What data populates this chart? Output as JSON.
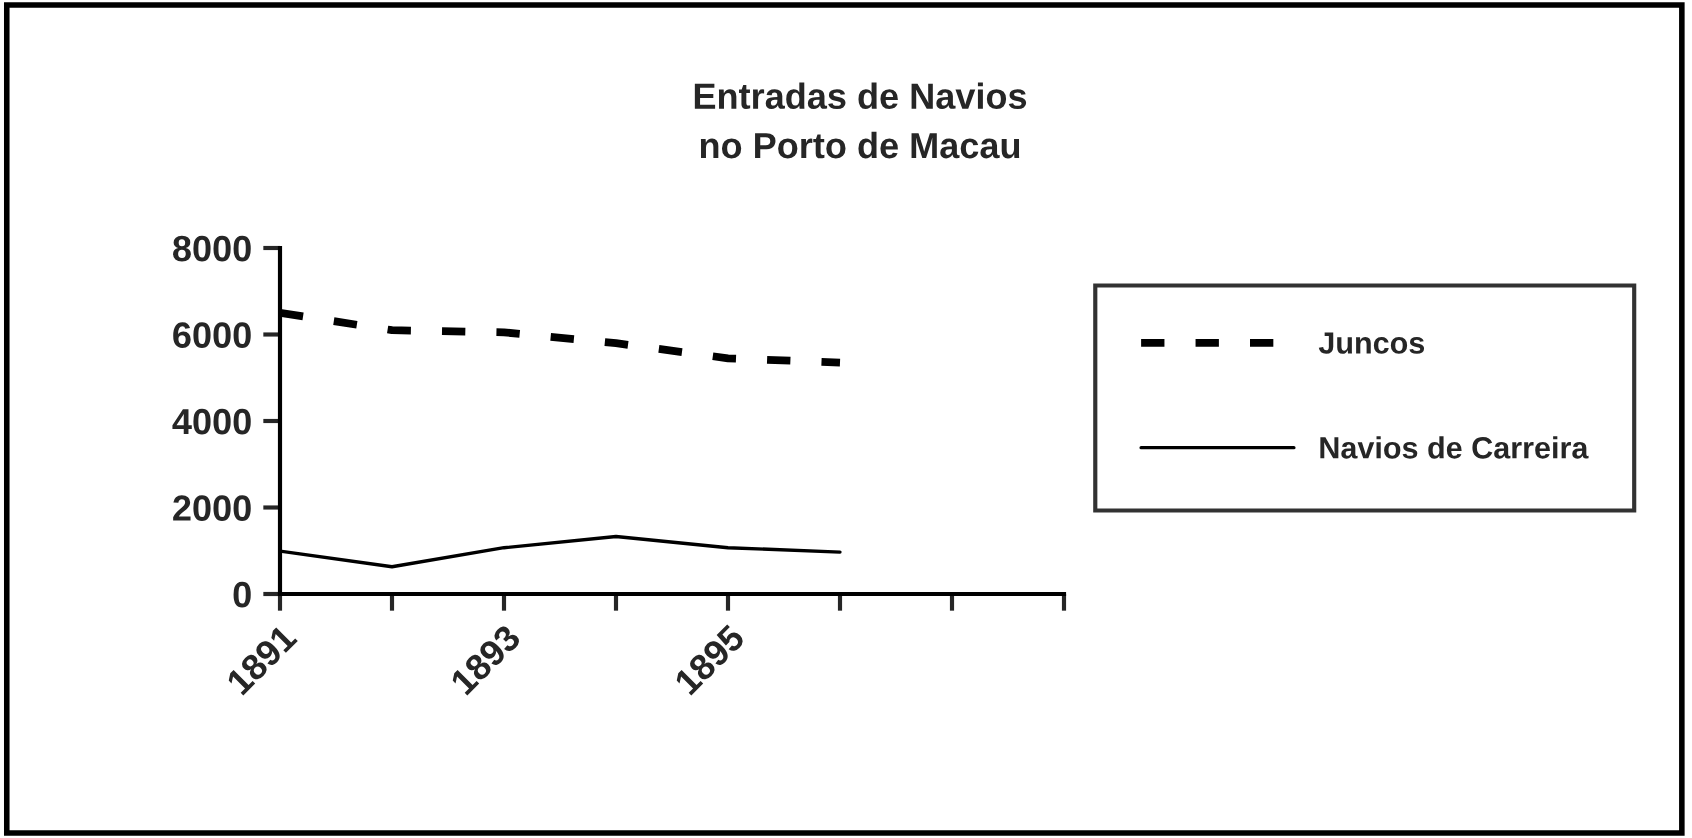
{
  "chart_data": {
    "type": "line",
    "title": "Entradas de Navios\nno Porto de Macau",
    "categories": [
      "1891",
      null,
      "1893",
      null,
      "1895",
      null,
      null,
      null
    ],
    "series": [
      {
        "name": "Juncos",
        "color": "#000000",
        "line_style": "dashed",
        "values": [
          6500,
          6100,
          6050,
          5800,
          5450,
          5350,
          null,
          null
        ]
      },
      {
        "name": "Navios de Carreira",
        "color": "#000000",
        "line_style": "solid",
        "values": [
          990,
          630,
          1070,
          1330,
          1070,
          970,
          null,
          null
        ]
      }
    ],
    "ylim": [
      0,
      8000
    ],
    "yticks": [
      0,
      2000,
      4000,
      6000,
      8000
    ],
    "grid": false,
    "legend": "right"
  }
}
